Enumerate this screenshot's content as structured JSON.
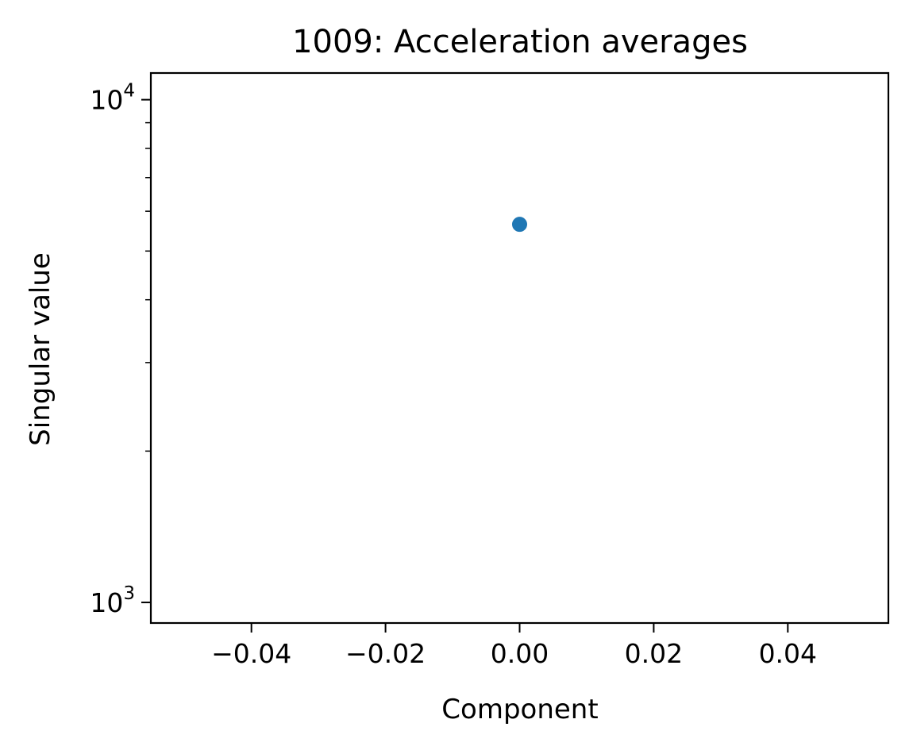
{
  "chart_data": {
    "type": "scatter",
    "title": "1009: Acceleration averages",
    "xlabel": "Component",
    "ylabel": "Singular value",
    "xlim": [
      -0.055,
      0.055
    ],
    "ylim": [
      910,
      11300
    ],
    "yscale": "log",
    "grid": false,
    "x_ticks": [
      {
        "value": -0.04,
        "label": "−0.04"
      },
      {
        "value": -0.02,
        "label": "−0.02"
      },
      {
        "value": 0.0,
        "label": "0.00"
      },
      {
        "value": 0.02,
        "label": "0.02"
      },
      {
        "value": 0.04,
        "label": "0.04"
      }
    ],
    "y_major_ticks": [
      {
        "value": 1000,
        "base": "10",
        "exp": "3"
      },
      {
        "value": 10000,
        "base": "10",
        "exp": "4"
      }
    ],
    "y_minor_ticks": [
      2000,
      3000,
      4000,
      5000,
      6000,
      7000,
      8000,
      9000
    ],
    "series": [
      {
        "color": "#1f77b4",
        "points": [
          {
            "x": 0.0,
            "y": 5650
          }
        ]
      }
    ]
  }
}
